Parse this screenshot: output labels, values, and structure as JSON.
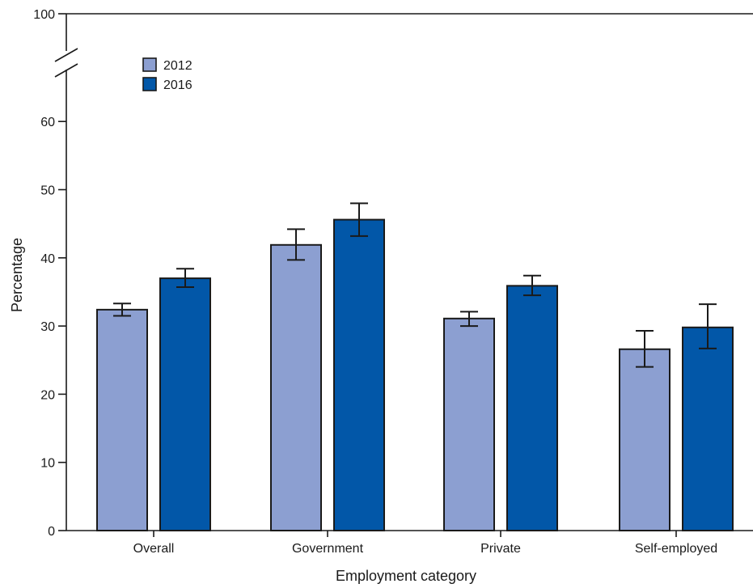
{
  "chart_data": {
    "type": "bar",
    "categories": [
      "Overall",
      "Government",
      "Private",
      "Self-employed"
    ],
    "series": [
      {
        "name": "2012",
        "color": "#8c9fd1",
        "values": [
          32.4,
          41.9,
          31.1,
          26.6
        ],
        "error_low": [
          31.5,
          39.7,
          30.0,
          24.0
        ],
        "error_high": [
          33.3,
          44.2,
          32.1,
          29.3
        ]
      },
      {
        "name": "2016",
        "color": "#0257a8",
        "values": [
          37.0,
          45.6,
          35.9,
          29.8
        ],
        "error_low": [
          35.7,
          43.2,
          34.5,
          26.7
        ],
        "error_high": [
          38.4,
          48.0,
          37.4,
          33.2
        ]
      }
    ],
    "xlabel": "Employment category",
    "ylabel": "Percentage",
    "y_ticks": [
      0,
      10,
      20,
      30,
      40,
      50,
      60
    ],
    "y_break_label": 100,
    "ylim": [
      0,
      65
    ],
    "axis_break": true,
    "grid": false,
    "legend_position": "top-left"
  }
}
